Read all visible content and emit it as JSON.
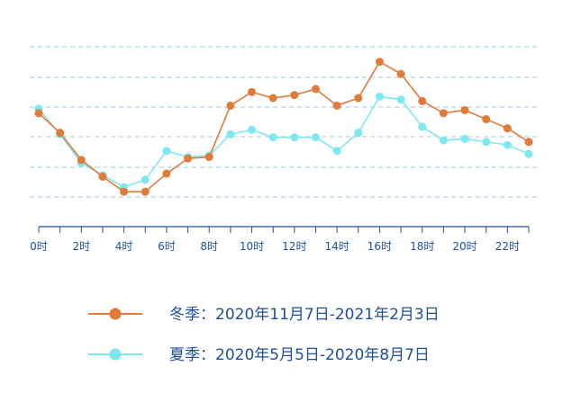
{
  "chart_data": {
    "type": "line",
    "x": [
      0,
      1,
      2,
      3,
      4,
      5,
      6,
      7,
      8,
      9,
      10,
      11,
      12,
      13,
      14,
      15,
      16,
      17,
      18,
      19,
      20,
      21,
      22,
      23
    ],
    "tick_labels": [
      "0时",
      "2时",
      "4时",
      "6时",
      "8时",
      "10时",
      "12时",
      "14时",
      "16时",
      "18时",
      "20时",
      "22时"
    ],
    "tick_values": [
      0,
      2,
      4,
      6,
      8,
      10,
      12,
      14,
      16,
      18,
      20,
      22
    ],
    "ylim": [
      0,
      100
    ],
    "grid": true,
    "legend_position": "bottom",
    "series": [
      {
        "name": "冬季：2020年11月7日-2021年2月3日",
        "color": "#e07b39",
        "values": [
          62,
          49,
          31,
          20,
          10,
          10,
          22,
          32,
          33,
          67,
          76,
          72,
          74,
          78,
          67,
          72,
          96,
          88,
          70,
          62,
          64,
          58,
          52,
          43
        ]
      },
      {
        "name": "夏季：2020年5月5日-2020年8月7日",
        "color": "#7ee8f0",
        "values": [
          65,
          48,
          29,
          21,
          13,
          18,
          37,
          33,
          34,
          48,
          51,
          46,
          46,
          46,
          37,
          49,
          73,
          71,
          53,
          44,
          45,
          43,
          41,
          35
        ]
      }
    ]
  }
}
